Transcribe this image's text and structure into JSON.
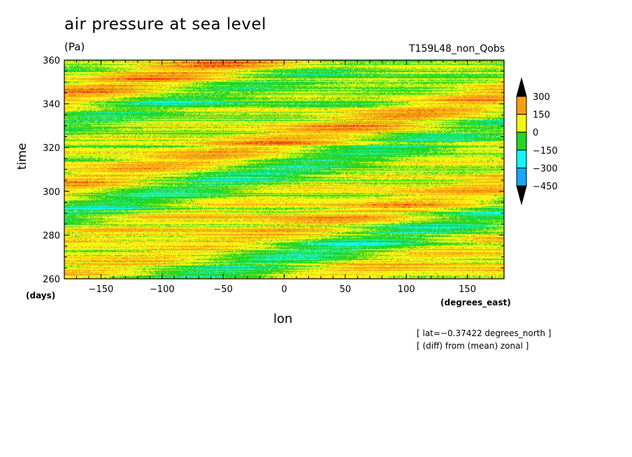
{
  "chart_data": {
    "type": "heatmap",
    "title": "air pressure at sea level",
    "units": "(Pa)",
    "run_label": "T159L48_non_Qobs",
    "xlabel": "lon",
    "x_units": "(degrees_east)",
    "ylabel": "time",
    "y_units": "(days)",
    "xlim": [
      -180,
      180
    ],
    "ylim": [
      260,
      360
    ],
    "x_ticks": [
      -150,
      -100,
      -50,
      0,
      50,
      100,
      150
    ],
    "x_tick_labels": [
      "−150",
      "−100",
      "−50",
      "0",
      "50",
      "100",
      "150"
    ],
    "y_ticks": [
      260,
      280,
      300,
      320,
      340,
      360
    ],
    "y_tick_labels": [
      "260",
      "280",
      "300",
      "320",
      "340",
      "360"
    ],
    "annotations": [
      "[ lat=−0.37422 degrees_north ]",
      "[ (diff) from (mean) zonal ]"
    ],
    "colorbar": {
      "levels": [
        -450,
        -300,
        -150,
        0,
        150,
        300
      ],
      "level_labels": [
        "300",
        "150",
        "0",
        "−150",
        "−300",
        "−450"
      ],
      "colors": [
        "#1a78f0",
        "#18a6f5",
        "#14f5f5",
        "#24d624",
        "#f5f514",
        "#f5a014",
        "#f51414"
      ],
      "extend": "both"
    },
    "description_fields": "zonal-mean-removed sea level pressure anomaly, eastward propagating bands"
  },
  "palette": {
    "deep_blue": "#1a78f0",
    "blue": "#18a6f5",
    "cyan": "#14f5f5",
    "green": "#24d624",
    "yellow": "#f5f514",
    "orange": "#f5a014",
    "red": "#f51414"
  }
}
